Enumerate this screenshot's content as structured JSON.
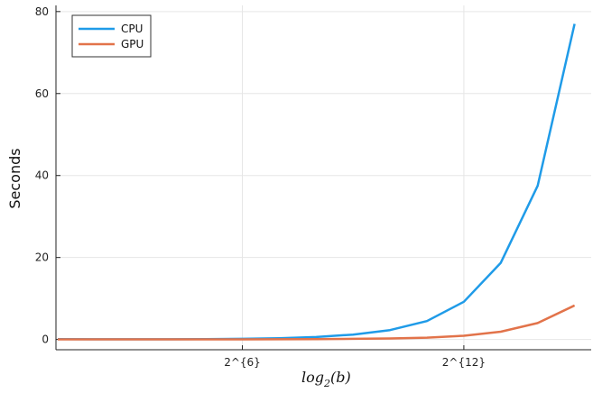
{
  "chart_data": {
    "type": "line",
    "title": "",
    "xlabel_main": "log",
    "xlabel_sub": "2",
    "xlabel_arg": "(b)",
    "ylabel": "Seconds",
    "xlim": [
      0.95,
      15.45
    ],
    "ylim": [
      -2.5,
      81.5
    ],
    "grid": true,
    "legend_position": "top-left",
    "x_ticks": [
      {
        "value": 6,
        "label": "2^{6}"
      },
      {
        "value": 12,
        "label": "2^{12}"
      }
    ],
    "y_ticks": [
      {
        "value": 0,
        "label": "0"
      },
      {
        "value": 20,
        "label": "20"
      },
      {
        "value": 40,
        "label": "40"
      },
      {
        "value": 60,
        "label": "60"
      },
      {
        "value": 80,
        "label": "80"
      }
    ],
    "x": [
      1,
      2,
      3,
      4,
      5,
      6,
      7,
      8,
      9,
      10,
      11,
      12,
      13,
      14,
      15
    ],
    "series": [
      {
        "name": "CPU",
        "color": "#1f9be8",
        "values": [
          0.1,
          0.05,
          0.05,
          0.05,
          0.08,
          0.15,
          0.3,
          0.6,
          1.2,
          2.3,
          4.5,
          9.2,
          18.7,
          37.5,
          77.0
        ]
      },
      {
        "name": "GPU",
        "color": "#e2734a",
        "values": [
          0.02,
          0.02,
          0.02,
          0.02,
          0.02,
          0.03,
          0.05,
          0.08,
          0.15,
          0.25,
          0.45,
          0.9,
          1.9,
          4.0,
          8.3
        ]
      }
    ]
  }
}
